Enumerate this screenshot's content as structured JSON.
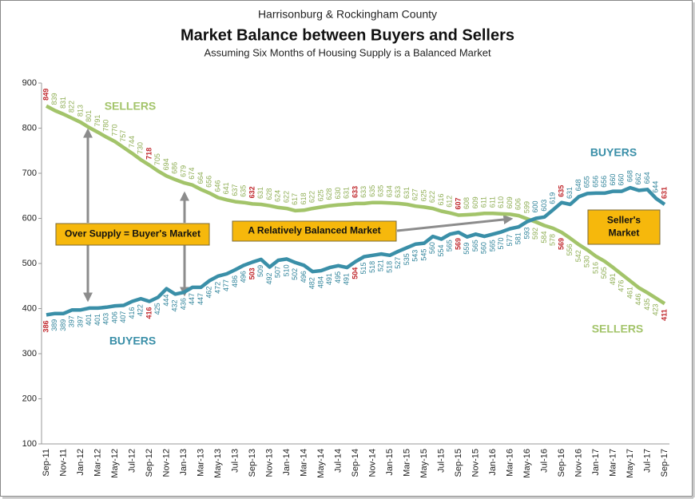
{
  "chart_data": {
    "type": "line",
    "title": "Market Balance between Buyers and Sellers",
    "supertitle": "Harrisonburg & Rockingham County",
    "subtitle": "Assuming Six Months of Housing Supply is a Balanced Market",
    "categories": [
      "Sep-11",
      null,
      "Nov-11",
      null,
      "Jan-12",
      null,
      "Mar-12",
      null,
      "May-12",
      null,
      "Jul-12",
      null,
      "Sep-12",
      null,
      "Nov-12",
      null,
      "Jan-13",
      null,
      "Mar-13",
      null,
      "May-13",
      null,
      "Jul-13",
      null,
      "Sep-13",
      null,
      "Nov-13",
      null,
      "Jan-14",
      null,
      "Mar-14",
      null,
      "May-14",
      null,
      "Jul-14",
      null,
      "Sep-14",
      null,
      "Nov-14",
      null,
      "Jan-15",
      null,
      "Mar-15",
      null,
      "May-15",
      null,
      "Jul-15",
      null,
      "Sep-15",
      null,
      "Nov-15",
      null,
      "Jan-16",
      null,
      "Mar-16",
      null,
      "May-16",
      null,
      "Jul-16",
      null,
      "Sep-16",
      null,
      "Nov-16",
      null,
      "Jan-17",
      null,
      "Mar-17",
      null,
      "May-17",
      null,
      "Jul-17",
      null,
      "Sep-17"
    ],
    "series": [
      {
        "name": "SELLERS",
        "color": "#a3c46a",
        "label_color": "#8fae55",
        "values": [
          849,
          839,
          831,
          822,
          813,
          801,
          791,
          780,
          770,
          757,
          744,
          730,
          718,
          705,
          694,
          686,
          679,
          674,
          664,
          656,
          646,
          641,
          637,
          635,
          632,
          631,
          628,
          624,
          622,
          617,
          618,
          622,
          625,
          628,
          630,
          631,
          633,
          633,
          635,
          635,
          634,
          633,
          631,
          627,
          625,
          622,
          616,
          612,
          607,
          608,
          609,
          611,
          611,
          610,
          609,
          606,
          599,
          592,
          584,
          578,
          569,
          556,
          542,
          530,
          516,
          505,
          491,
          476,
          461,
          446,
          435,
          423,
          411
        ]
      },
      {
        "name": "BUYERS",
        "color": "#3a8fa8",
        "label_color": "#31849b",
        "values": [
          386,
          389,
          389,
          397,
          397,
          401,
          401,
          403,
          406,
          407,
          416,
          422,
          416,
          425,
          444,
          432,
          436,
          447,
          447,
          462,
          472,
          477,
          486,
          496,
          503,
          509,
          492,
          507,
          510,
          502,
          496,
          482,
          484,
          491,
          495,
          491,
          504,
          515,
          518,
          521,
          518,
          527,
          535,
          543,
          545,
          560,
          554,
          565,
          569,
          559,
          565,
          560,
          565,
          570,
          577,
          581,
          593,
          600,
          603,
          619,
          635,
          631,
          648,
          655,
          656,
          656,
          660,
          660,
          668,
          662,
          664,
          644,
          631
        ]
      }
    ],
    "highlight_indices": [
      0,
      12,
      24,
      36,
      48,
      60,
      72
    ],
    "highlight_color": "#c0282d",
    "ylim": [
      100,
      900
    ],
    "yticks": [
      100,
      200,
      300,
      400,
      500,
      600,
      700,
      800,
      900
    ],
    "annotations": [
      "SELLERS",
      "BUYERS",
      "BUYERS",
      "SELLERS"
    ],
    "boxes": [
      [
        "Over Supply = Buyer's Market"
      ],
      [
        "A Relatively Balanced Market"
      ],
      [
        "Seller's",
        "Market"
      ]
    ]
  }
}
